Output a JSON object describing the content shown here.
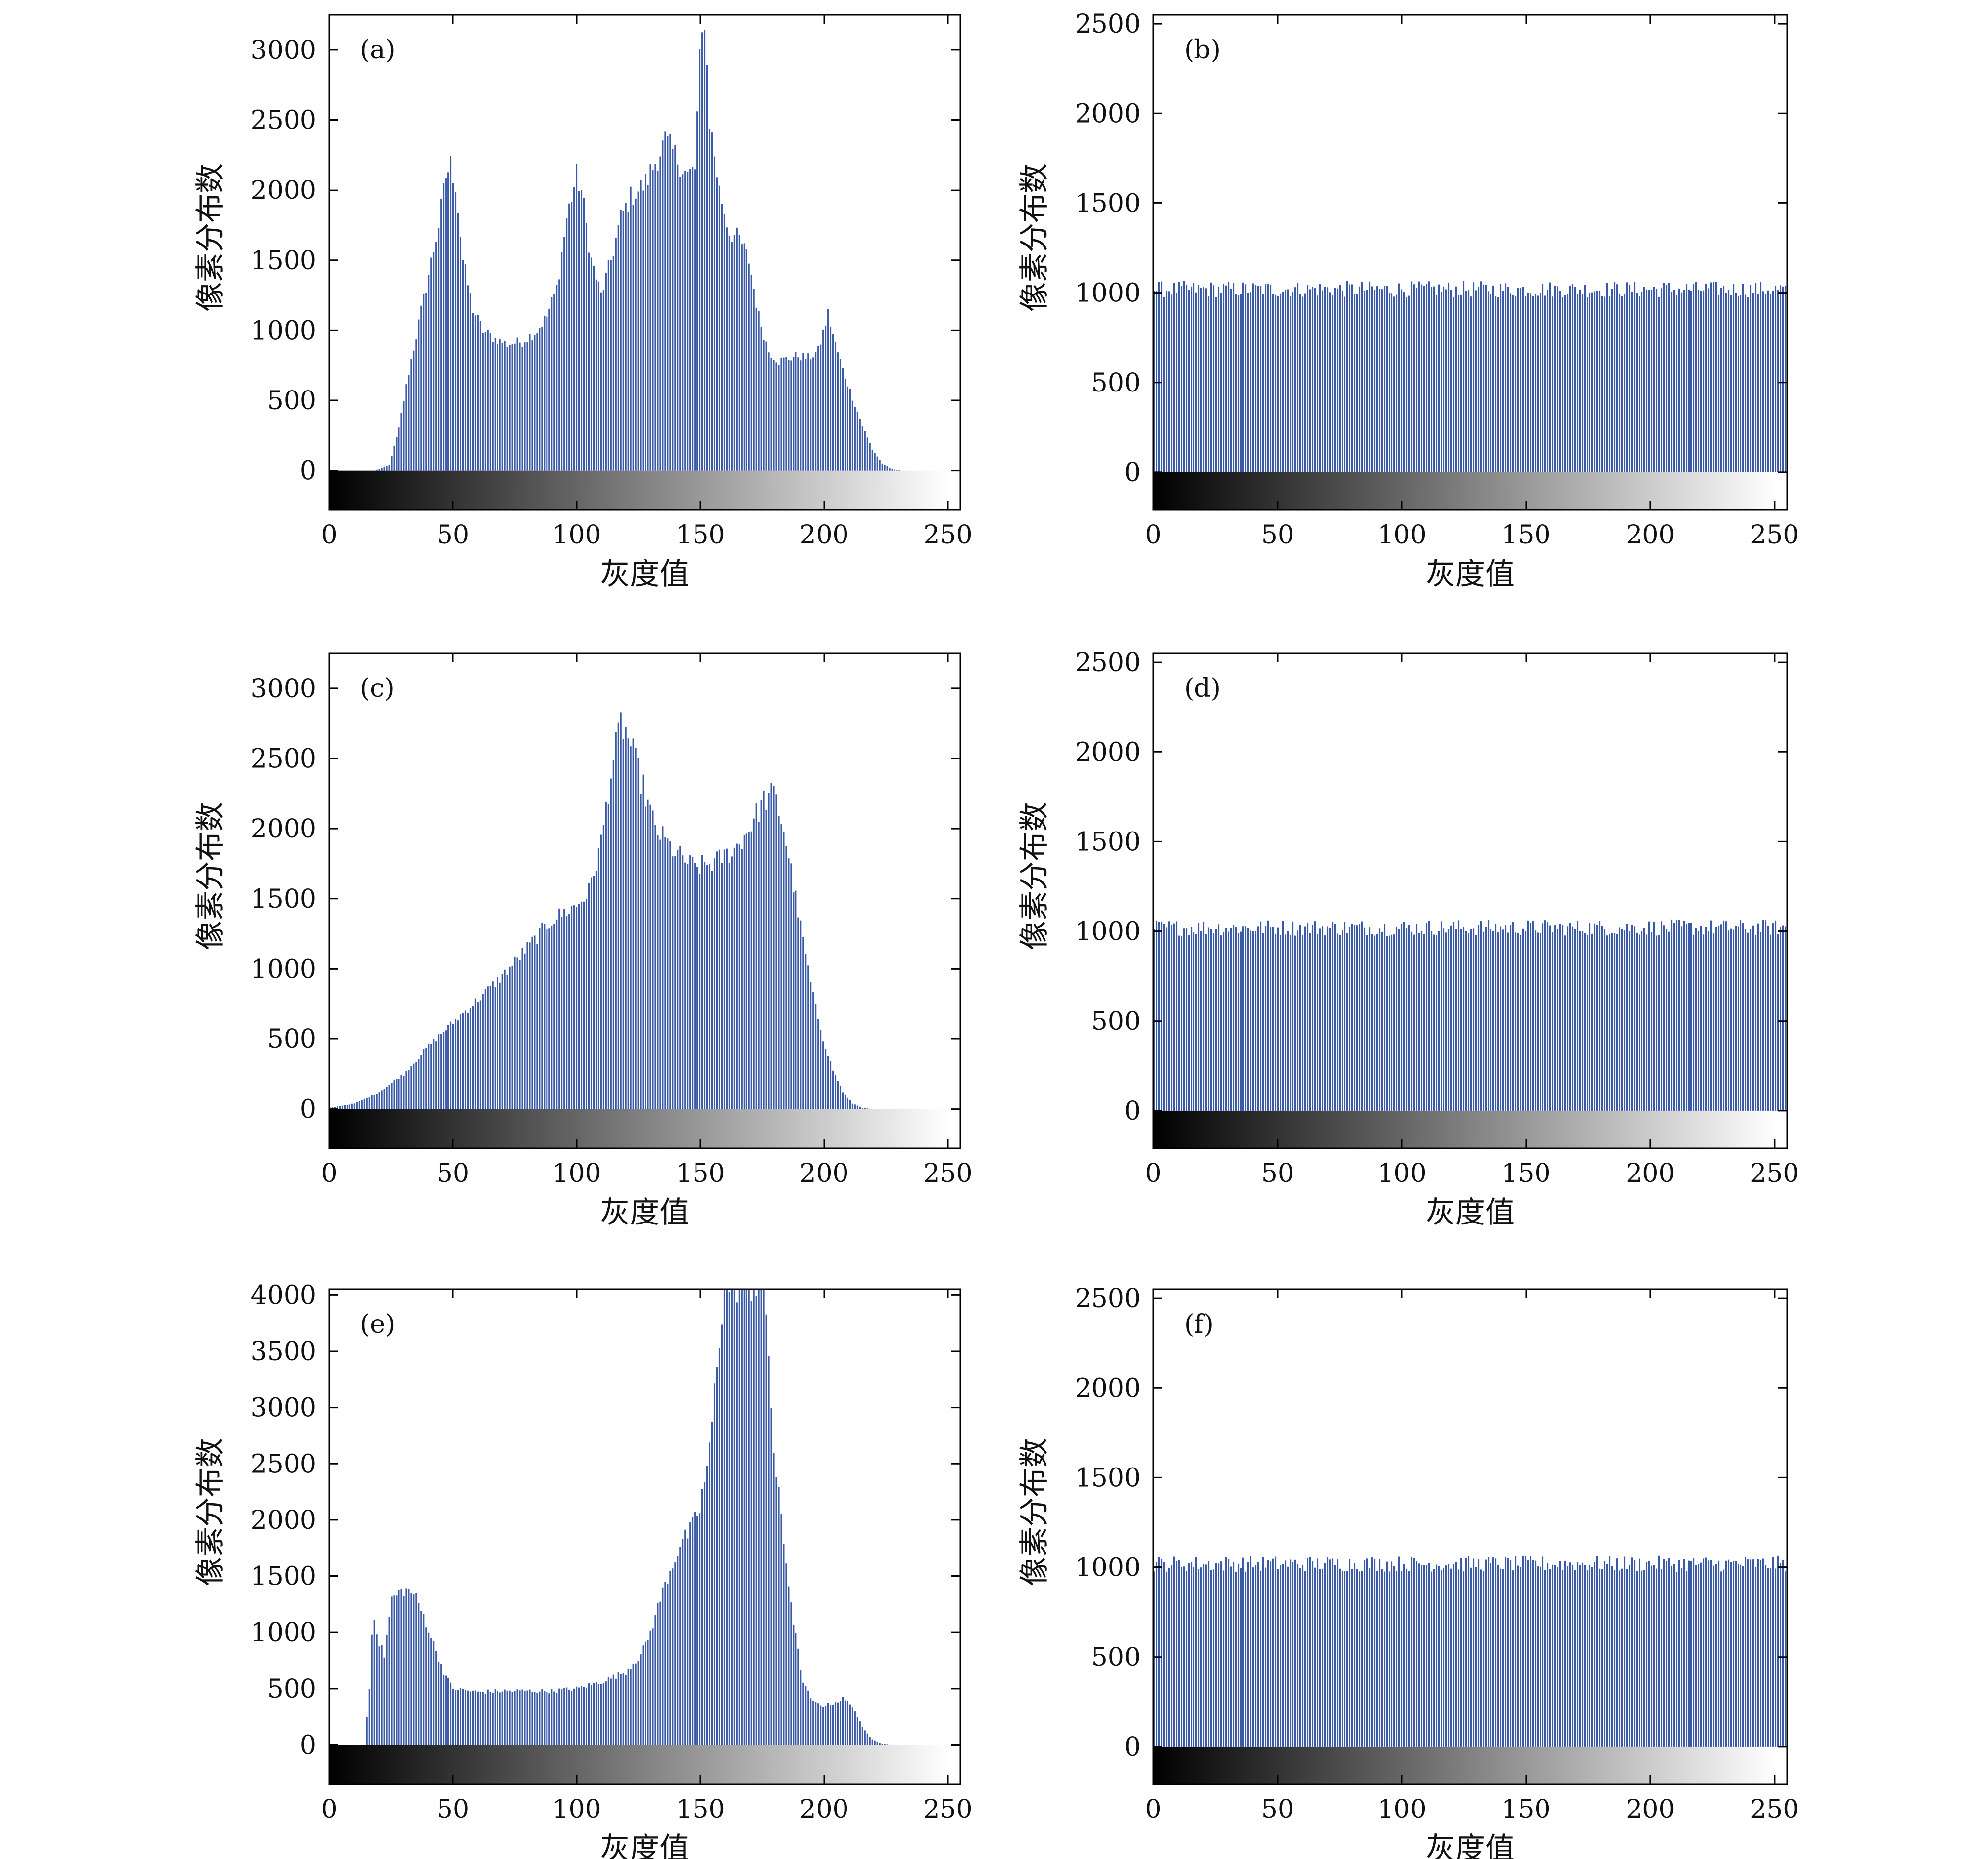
{
  "chart_data": [
    {
      "type": "bar",
      "panel_label": "(a)",
      "xlabel": "灰度值",
      "ylabel": "像素分布数",
      "xlim": [
        0,
        255
      ],
      "ylim": [
        -280,
        3250
      ],
      "yticks": [
        0,
        500,
        1000,
        1500,
        2000,
        2500,
        3000
      ],
      "xticks": [
        0,
        50,
        100,
        150,
        200,
        250
      ],
      "grayscale_colorbar": true,
      "color": "#3a5aa8",
      "profile": [
        [
          0,
          0
        ],
        [
          18,
          0
        ],
        [
          24,
          40
        ],
        [
          28,
          300
        ],
        [
          32,
          700
        ],
        [
          36,
          1050
        ],
        [
          40,
          1400
        ],
        [
          44,
          1750
        ],
        [
          47,
          2100
        ],
        [
          49,
          2180
        ],
        [
          51,
          2050
        ],
        [
          54,
          1500
        ],
        [
          58,
          1150
        ],
        [
          62,
          1000
        ],
        [
          66,
          950
        ],
        [
          72,
          900
        ],
        [
          78,
          920
        ],
        [
          84,
          1000
        ],
        [
          88,
          1100
        ],
        [
          92,
          1300
        ],
        [
          96,
          1800
        ],
        [
          100,
          2100
        ],
        [
          102,
          2000
        ],
        [
          106,
          1500
        ],
        [
          110,
          1250
        ],
        [
          114,
          1500
        ],
        [
          118,
          1800
        ],
        [
          122,
          1950
        ],
        [
          128,
          2050
        ],
        [
          132,
          2200
        ],
        [
          136,
          2350
        ],
        [
          140,
          2250
        ],
        [
          145,
          2100
        ],
        [
          148,
          2150
        ],
        [
          150,
          2900
        ],
        [
          152,
          3250
        ],
        [
          154,
          2500
        ],
        [
          158,
          2000
        ],
        [
          162,
          1700
        ],
        [
          166,
          1650
        ],
        [
          170,
          1500
        ],
        [
          174,
          1100
        ],
        [
          178,
          850
        ],
        [
          182,
          780
        ],
        [
          186,
          800
        ],
        [
          190,
          820
        ],
        [
          194,
          800
        ],
        [
          198,
          850
        ],
        [
          202,
          1120
        ],
        [
          205,
          900
        ],
        [
          208,
          720
        ],
        [
          212,
          520
        ],
        [
          216,
          320
        ],
        [
          220,
          150
        ],
        [
          224,
          50
        ],
        [
          228,
          10
        ],
        [
          232,
          0
        ],
        [
          255,
          0
        ]
      ]
    },
    {
      "type": "bar",
      "panel_label": "(b)",
      "xlabel": "灰度值",
      "ylabel": "像素分布数",
      "xlim": [
        0,
        255
      ],
      "ylim": [
        -210,
        2550
      ],
      "yticks": [
        0,
        500,
        1000,
        1500,
        2000,
        2500
      ],
      "xticks": [
        0,
        50,
        100,
        150,
        200,
        250
      ],
      "grayscale_colorbar": true,
      "color": "#3a5aa8",
      "profile": [
        [
          0,
          1020
        ],
        [
          255,
          1020
        ]
      ]
    },
    {
      "type": "bar",
      "panel_label": "(c)",
      "xlabel": "灰度值",
      "ylabel": "像素分布数",
      "xlim": [
        0,
        255
      ],
      "ylim": [
        -280,
        3250
      ],
      "yticks": [
        0,
        500,
        1000,
        1500,
        2000,
        2500,
        3000
      ],
      "xticks": [
        0,
        50,
        100,
        150,
        200,
        250
      ],
      "grayscale_colorbar": true,
      "color": "#3a5aa8",
      "profile": [
        [
          0,
          10
        ],
        [
          10,
          40
        ],
        [
          20,
          120
        ],
        [
          30,
          250
        ],
        [
          40,
          450
        ],
        [
          50,
          620
        ],
        [
          60,
          780
        ],
        [
          70,
          950
        ],
        [
          80,
          1150
        ],
        [
          90,
          1350
        ],
        [
          100,
          1450
        ],
        [
          105,
          1550
        ],
        [
          110,
          1900
        ],
        [
          114,
          2400
        ],
        [
          118,
          2750
        ],
        [
          121,
          2650
        ],
        [
          126,
          2350
        ],
        [
          132,
          2000
        ],
        [
          140,
          1830
        ],
        [
          148,
          1720
        ],
        [
          156,
          1760
        ],
        [
          164,
          1850
        ],
        [
          170,
          2000
        ],
        [
          176,
          2200
        ],
        [
          180,
          2250
        ],
        [
          184,
          2000
        ],
        [
          188,
          1600
        ],
        [
          192,
          1200
        ],
        [
          196,
          800
        ],
        [
          200,
          500
        ],
        [
          204,
          280
        ],
        [
          208,
          120
        ],
        [
          212,
          40
        ],
        [
          216,
          10
        ],
        [
          220,
          0
        ],
        [
          255,
          0
        ]
      ]
    },
    {
      "type": "bar",
      "panel_label": "(d)",
      "xlabel": "灰度值",
      "ylabel": "像素分布数",
      "xlim": [
        0,
        255
      ],
      "ylim": [
        -210,
        2550
      ],
      "yticks": [
        0,
        500,
        1000,
        1500,
        2000,
        2500
      ],
      "xticks": [
        0,
        50,
        100,
        150,
        200,
        250
      ],
      "grayscale_colorbar": true,
      "color": "#3a5aa8",
      "profile": [
        [
          0,
          1020
        ],
        [
          255,
          1020
        ]
      ]
    },
    {
      "type": "bar",
      "panel_label": "(e)",
      "xlabel": "灰度值",
      "ylabel": "像素分布数",
      "xlim": [
        0,
        255
      ],
      "ylim": [
        -350,
        4050
      ],
      "yticks": [
        0,
        500,
        1000,
        1500,
        2000,
        2500,
        3000,
        3500,
        4000
      ],
      "xticks": [
        0,
        50,
        100,
        150,
        200,
        250
      ],
      "grayscale_colorbar": true,
      "color": "#3a5aa8",
      "profile": [
        [
          0,
          0
        ],
        [
          14,
          0
        ],
        [
          16,
          500
        ],
        [
          17,
          980
        ],
        [
          18,
          1150
        ],
        [
          20,
          900
        ],
        [
          22,
          800
        ],
        [
          25,
          1300
        ],
        [
          30,
          1380
        ],
        [
          34,
          1350
        ],
        [
          38,
          1150
        ],
        [
          42,
          900
        ],
        [
          46,
          650
        ],
        [
          50,
          500
        ],
        [
          60,
          470
        ],
        [
          70,
          480
        ],
        [
          80,
          480
        ],
        [
          90,
          480
        ],
        [
          100,
          500
        ],
        [
          110,
          560
        ],
        [
          120,
          650
        ],
        [
          126,
          800
        ],
        [
          130,
          1000
        ],
        [
          134,
          1300
        ],
        [
          138,
          1550
        ],
        [
          142,
          1780
        ],
        [
          146,
          1900
        ],
        [
          150,
          2100
        ],
        [
          154,
          2600
        ],
        [
          157,
          3400
        ],
        [
          160,
          4100
        ],
        [
          176,
          4100
        ],
        [
          178,
          3500
        ],
        [
          180,
          2600
        ],
        [
          184,
          1800
        ],
        [
          188,
          1100
        ],
        [
          192,
          550
        ],
        [
          196,
          380
        ],
        [
          200,
          350
        ],
        [
          204,
          370
        ],
        [
          208,
          410
        ],
        [
          212,
          350
        ],
        [
          216,
          150
        ],
        [
          220,
          50
        ],
        [
          224,
          10
        ],
        [
          228,
          0
        ],
        [
          255,
          0
        ]
      ]
    },
    {
      "type": "bar",
      "panel_label": "(f)",
      "xlabel": "灰度值",
      "ylabel": "像素分布数",
      "xlim": [
        0,
        255
      ],
      "ylim": [
        -210,
        2550
      ],
      "yticks": [
        0,
        500,
        1000,
        1500,
        2000,
        2500
      ],
      "xticks": [
        0,
        50,
        100,
        150,
        200,
        250
      ],
      "grayscale_colorbar": true,
      "color": "#3a5aa8",
      "profile": [
        [
          0,
          1020
        ],
        [
          255,
          1020
        ]
      ]
    }
  ]
}
